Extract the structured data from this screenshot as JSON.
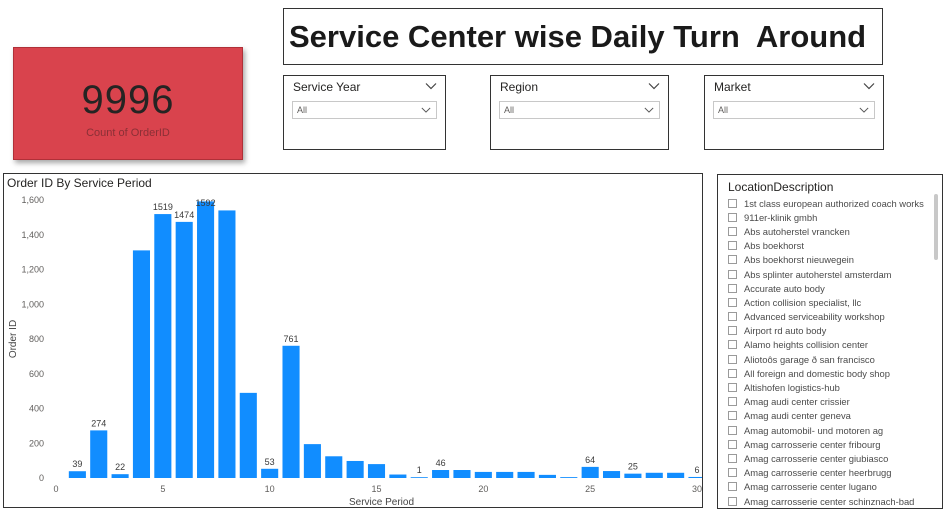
{
  "kpi": {
    "value": "9996",
    "label": "Count of OrderID",
    "color": "#d9434d"
  },
  "title": "Service Center wise Daily Turn  Around",
  "slicers": [
    {
      "title": "Service Year",
      "value": "All"
    },
    {
      "title": "Region",
      "value": "All"
    },
    {
      "title": "Market",
      "value": "All"
    }
  ],
  "chart_data": {
    "type": "bar",
    "title": "Order ID By Service Period",
    "xlabel": "Service Period",
    "ylabel": "Order ID",
    "x": [
      1,
      2,
      3,
      4,
      5,
      6,
      7,
      8,
      9,
      10,
      11,
      12,
      13,
      14,
      15,
      16,
      17,
      18,
      19,
      20,
      21,
      22,
      23,
      24,
      25,
      26,
      27,
      28,
      29,
      30
    ],
    "values": [
      39,
      274,
      22,
      1310,
      1519,
      1474,
      1592,
      1540,
      490,
      53,
      761,
      195,
      125,
      98,
      80,
      20,
      1,
      46,
      46,
      35,
      35,
      35,
      18,
      5,
      64,
      40,
      25,
      30,
      30,
      6
    ],
    "data_labels": {
      "1": "39",
      "2": "274",
      "3": "22",
      "5": "1519",
      "6": "1474",
      "7": "1592",
      "10": "53",
      "11": "761",
      "17": "1",
      "18": "46",
      "25": "64",
      "27": "25",
      "30": "6"
    },
    "ylim": [
      0,
      1600
    ],
    "yticks": [
      0,
      200,
      400,
      600,
      800,
      1000,
      1200,
      1400,
      1600
    ],
    "ytick_labels": [
      "0",
      "200",
      "400",
      "600",
      "800",
      "1,000",
      "1,200",
      "1,400",
      "1,600"
    ],
    "xticks": [
      0,
      5,
      10,
      15,
      20,
      25,
      30
    ],
    "xlim": [
      0,
      30
    ],
    "bar_color": "#118dff"
  },
  "location": {
    "title": "LocationDescription",
    "items": [
      "1st class european authorized coach works",
      "911er-klinik gmbh",
      "Abs autoherstel vrancken",
      "Abs boekhorst",
      "Abs boekhorst nieuwegein",
      "Abs splinter autoherstel amsterdam",
      "Accurate auto body",
      "Action collision specialist, llc",
      "Advanced serviceability workshop",
      "Airport rd auto body",
      "Alamo heights collision center",
      "Aliotoôs garage ð san francisco",
      "All foreign and domestic body shop",
      "Altishofen logistics-hub",
      "Amag audi center crissier",
      "Amag audi center geneva",
      "Amag automobil- und motoren ag",
      "Amag carrosserie center fribourg",
      "Amag carrosserie center giubiasco",
      "Amag carrosserie center heerbrugg",
      "Amag carrosserie center lugano",
      "Amag carrosserie center schinznach-bad"
    ]
  }
}
